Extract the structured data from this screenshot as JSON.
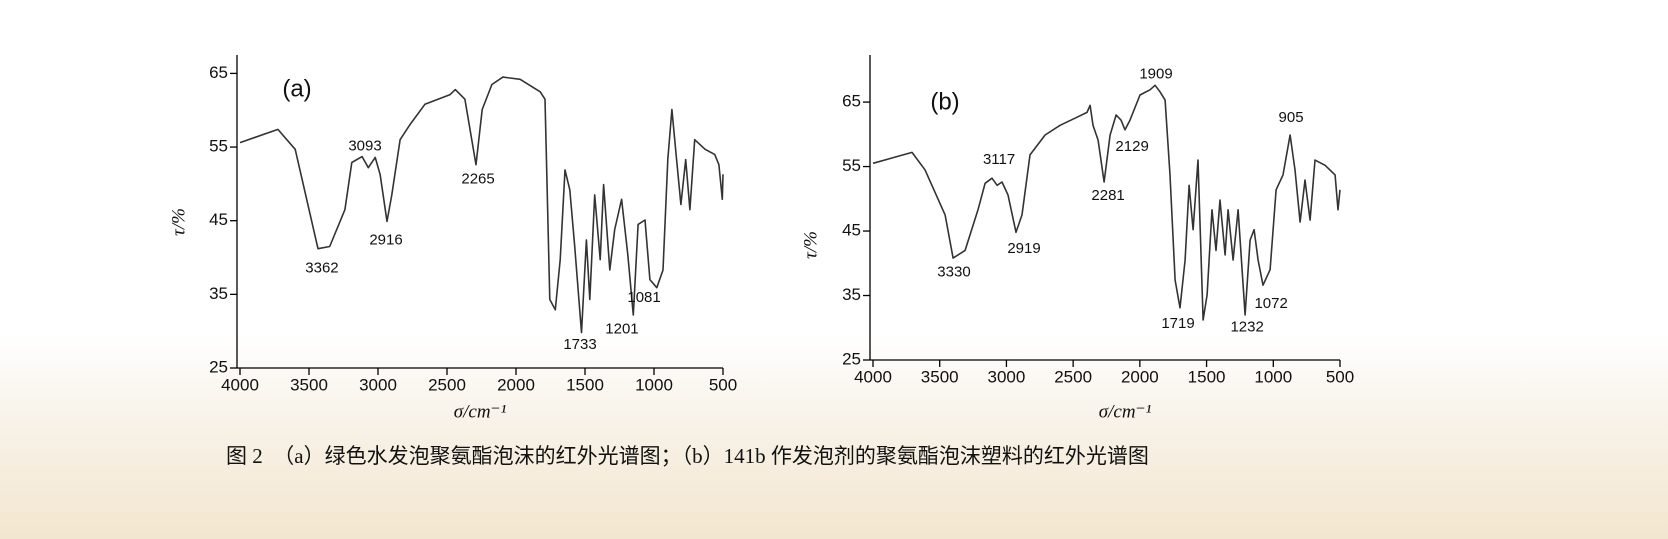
{
  "chart_data": [
    {
      "type": "line",
      "panel_label": "(a)",
      "xlabel": "σ/cm⁻¹",
      "ylabel": "τ/%",
      "color": "#333333",
      "xlim": [
        4000,
        500
      ],
      "xticks": [
        4000,
        3500,
        3000,
        2500,
        2000,
        1500,
        1000,
        500
      ],
      "ylim": [
        25,
        67.5
      ],
      "yticks": [
        25,
        35,
        45,
        55,
        65
      ],
      "x": [
        4000,
        3725,
        3600,
        3435,
        3350,
        3240,
        3190,
        3115,
        3070,
        3020,
        2985,
        2935,
        2900,
        2840,
        2770,
        2660,
        2480,
        2440,
        2370,
        2290,
        2245,
        2175,
        2095,
        1970,
        1825,
        1790,
        1755,
        1715,
        1680,
        1645,
        1610,
        1575,
        1525,
        1490,
        1465,
        1430,
        1390,
        1365,
        1320,
        1285,
        1235,
        1190,
        1150,
        1115,
        1065,
        1030,
        980,
        935,
        900,
        870,
        840,
        805,
        770,
        740,
        705,
        630,
        560,
        530,
        505,
        500
      ],
      "values": [
        55.6,
        57.4,
        54.7,
        41.2,
        41.5,
        46.5,
        52.9,
        53.7,
        52.2,
        53.6,
        51.3,
        44.9,
        48.5,
        56,
        58,
        60.8,
        62.1,
        62.8,
        61.5,
        52.6,
        60.1,
        63.5,
        64.5,
        64.2,
        62.5,
        61.5,
        34.3,
        32.9,
        39.7,
        51.9,
        49.2,
        41.7,
        29.8,
        42.4,
        34.3,
        48.5,
        39.7,
        49.9,
        38.3,
        43.8,
        47.9,
        40.4,
        32.2,
        44.5,
        45.1,
        37,
        35.9,
        38.3,
        53.3,
        60.1,
        54,
        47.2,
        53.3,
        46.5,
        56,
        54.7,
        54,
        52.6,
        47.9,
        51.3
      ],
      "annotations": [
        {
          "text": "3362",
          "x": 3406,
          "y": 38.5
        },
        {
          "text": "3093",
          "x": 3094,
          "y": 55.1
        },
        {
          "text": "2916",
          "x": 2942,
          "y": 42.3
        },
        {
          "text": "2265",
          "x": 2275,
          "y": 50.6
        },
        {
          "text": "1733",
          "x": 1536,
          "y": 28.1
        },
        {
          "text": "1201",
          "x": 1232,
          "y": 30.2
        },
        {
          "text": "1081",
          "x": 1072,
          "y": 34.5
        }
      ]
    },
    {
      "type": "line",
      "panel_label": "(b)",
      "xlabel": "σ/cm⁻¹",
      "ylabel": "τ/%",
      "color": "#333333",
      "xlim": [
        4000,
        500
      ],
      "xticks": [
        4000,
        3500,
        3000,
        2500,
        2000,
        1500,
        1000,
        500
      ],
      "ylim": [
        25,
        72.3
      ],
      "yticks": [
        25,
        35,
        45,
        55,
        65
      ],
      "x": [
        4000,
        3708,
        3610,
        3460,
        3400,
        3310,
        3213,
        3160,
        3108,
        3070,
        3033,
        2988,
        2928,
        2883,
        2823,
        2710,
        2598,
        2486,
        2396,
        2373,
        2351,
        2313,
        2268,
        2223,
        2178,
        2141,
        2111,
        2074,
        1999,
        1924,
        1886,
        1849,
        1811,
        1774,
        1736,
        1699,
        1661,
        1631,
        1601,
        1564,
        1526,
        1496,
        1459,
        1429,
        1399,
        1361,
        1339,
        1301,
        1264,
        1211,
        1174,
        1144,
        1114,
        1077,
        1024,
        979,
        927,
        874,
        837,
        799,
        762,
        724,
        687,
        612,
        537,
        515,
        500
      ],
      "values": [
        55.5,
        57.2,
        54.5,
        47.5,
        40.8,
        42,
        48.3,
        52.4,
        53.2,
        52.1,
        52.6,
        50.6,
        44.8,
        47.5,
        56.8,
        59.9,
        61.4,
        62.5,
        63.4,
        64.5,
        61.4,
        59.1,
        52.6,
        59.9,
        63,
        62.2,
        60.7,
        62.2,
        66.1,
        66.9,
        67.6,
        66.6,
        65.3,
        53.7,
        37.4,
        33.1,
        40.5,
        52.1,
        45.2,
        56,
        31.2,
        35.1,
        48.3,
        42,
        49.8,
        41.3,
        48.3,
        40.5,
        48.3,
        32,
        43.6,
        45.2,
        40.5,
        36.6,
        39,
        51.4,
        53.7,
        59.9,
        54.5,
        46.4,
        52.9,
        46.7,
        56,
        55.2,
        53.7,
        48.3,
        51.4
      ],
      "annotations": [
        {
          "text": "1909",
          "x": 1879,
          "y": 69.3
        },
        {
          "text": "3117",
          "x": 3055,
          "y": 56
        },
        {
          "text": "2919",
          "x": 2868,
          "y": 42.2
        },
        {
          "text": "3330",
          "x": 3393,
          "y": 38.6
        },
        {
          "text": "2281",
          "x": 2238,
          "y": 50.4
        },
        {
          "text": "2129",
          "x": 2058,
          "y": 58
        },
        {
          "text": "905",
          "x": 867,
          "y": 62.5
        },
        {
          "text": "1719",
          "x": 1714,
          "y": 30.6
        },
        {
          "text": "1232",
          "x": 1196,
          "y": 30
        },
        {
          "text": "1072",
          "x": 1016,
          "y": 33.7
        }
      ]
    }
  ],
  "caption": "图 2　（a）绿色水发泡聚氨酯泡沫的红外光谱图；（b）141b 作发泡剂的聚氨酯泡沫塑料的红外光谱图"
}
